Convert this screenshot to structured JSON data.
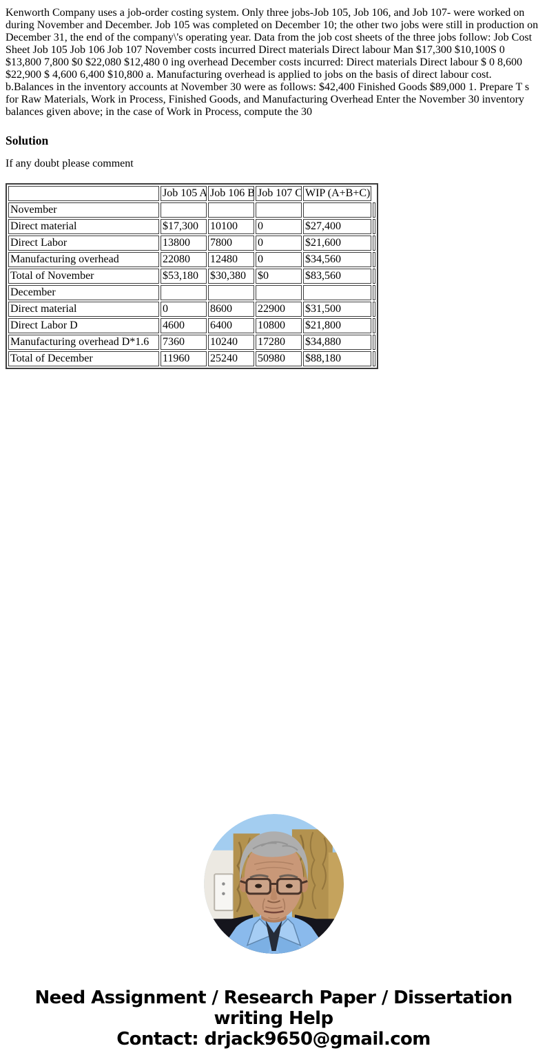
{
  "problem_text": "Kenworth Company uses a job-order costing system. Only three jobs-Job 105, Job 106, and Job 107- were worked on during November and December. Job 105 was completed on December 10; the other two jobs were still in production on December 31, the end of the company\\'s operating year. Data from the job cost sheets of the three jobs follow: Job Cost Sheet Job 105 Job 106 Job 107 November costs incurred Direct materials Direct labour Man $17,300 $10,100S 0 $13,800 7,800 $0 $22,080 $12,480 0 ing overhead December costs incurred: Direct materials Direct labour $ 0 8,600 $22,900 $ 4,600 6,400 $10,800 a. Manufacturing overhead is applied to jobs on the basis of direct labour cost. b.Balances in the inventory accounts at November 30 were as follows: $42,400 Finished Goods $89,000 1. Prepare T s for Raw Materials, Work in Process, Finished Goods, and Manufacturing Overhead Enter the November 30 inventory balances given above; in the case of Work in Process, compute the 30",
  "solution": {
    "heading": "Solution",
    "note": "If any doubt please comment"
  },
  "table": {
    "headers": [
      "",
      "Job 105 A",
      "Job 106 B",
      "Job 107 C",
      "WIP (A+B+C)"
    ],
    "rows": [
      {
        "label": "November",
        "values": [
          "",
          "",
          "",
          ""
        ]
      },
      {
        "label": "Direct material",
        "values": [
          "$17,300",
          "10100",
          "0",
          "$27,400"
        ]
      },
      {
        "label": "Direct Labor",
        "values": [
          "13800",
          "7800",
          "0",
          "$21,600"
        ]
      },
      {
        "label": "Manufacturing overhead",
        "values": [
          "22080",
          "12480",
          "0",
          "$34,560"
        ]
      },
      {
        "label": "Total of November",
        "values": [
          "$53,180",
          "$30,380",
          "$0",
          "$83,560"
        ]
      },
      {
        "label": "December",
        "values": [
          "",
          "",
          "",
          ""
        ]
      },
      {
        "label": "Direct material",
        "values": [
          "0",
          "8600",
          "22900",
          "$31,500"
        ]
      },
      {
        "label": "Direct Labor D",
        "values": [
          "4600",
          "6400",
          "10800",
          "$21,800"
        ]
      },
      {
        "label": "Manufacturing overhead D*1.6",
        "values": [
          "7360",
          "10240",
          "17280",
          "$34,880"
        ]
      },
      {
        "label": "Total of December",
        "values": [
          "11960",
          "25240",
          "50980",
          "$88,180"
        ]
      }
    ]
  },
  "footer": {
    "lines": [
      "Need Assignment / Research Paper / Dissertation",
      "writing Help",
      "Contact: drjack9650@gmail.com"
    ]
  }
}
